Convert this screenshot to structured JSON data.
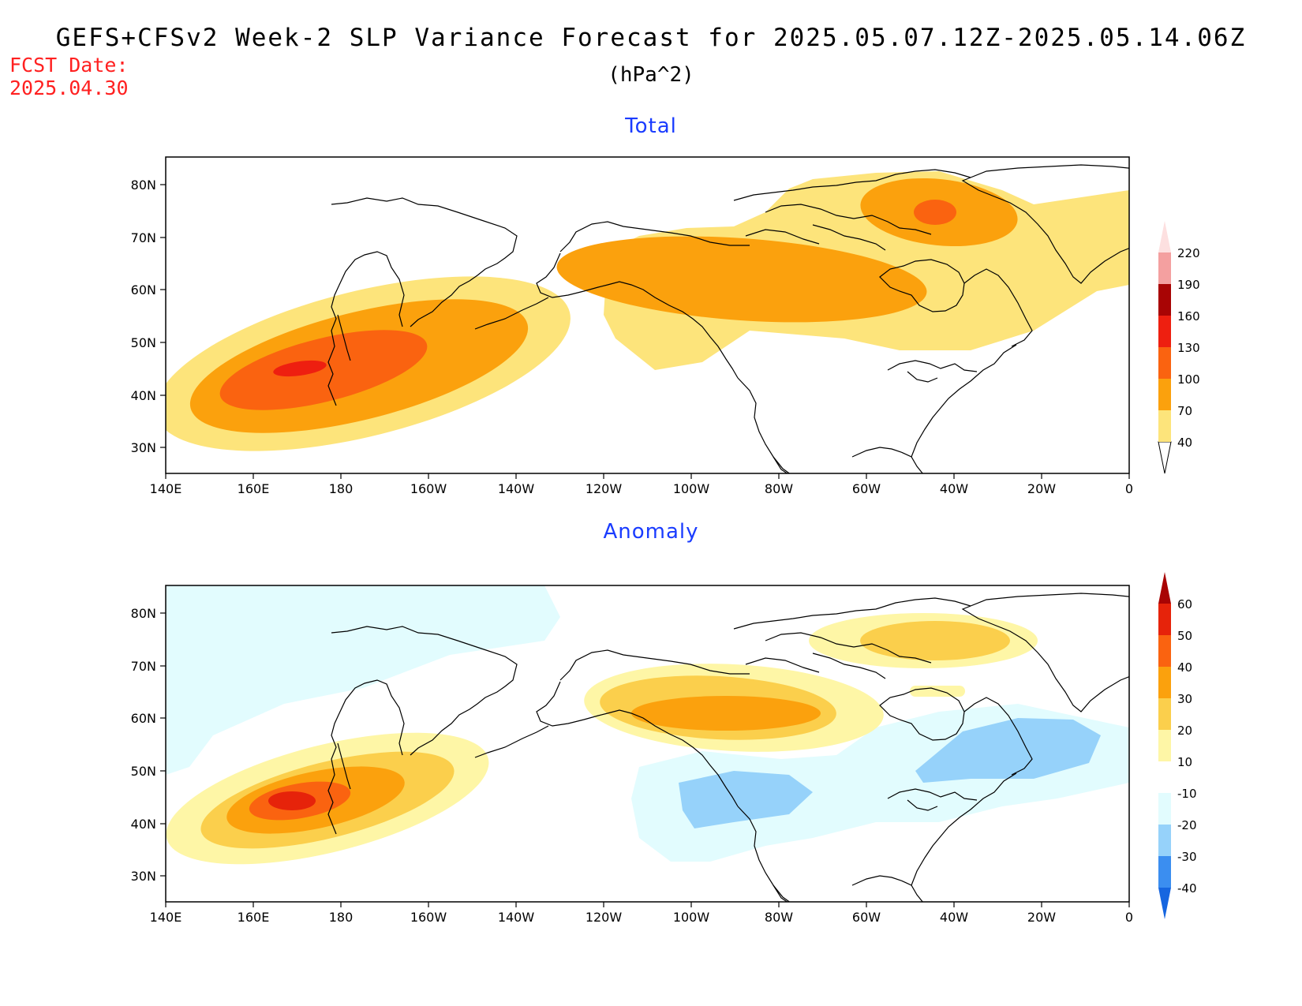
{
  "title": "GEFS+CFSv2 Week-2 SLP Variance Forecast for 2025.05.07.12Z-2025.05.14.06Z",
  "units": "(hPa^2)",
  "fcst_label": "FCST Date:",
  "fcst_date": "2025.04.30",
  "lon_ticks": [
    "140E",
    "160E",
    "180",
    "160W",
    "140W",
    "120W",
    "100W",
    "80W",
    "60W",
    "40W",
    "20W",
    "0"
  ],
  "lat_ticks": [
    "80N",
    "70N",
    "60N",
    "50N",
    "40N",
    "30N"
  ],
  "panels": [
    {
      "title": "Total",
      "legend": {
        "labels": [
          "40",
          "70",
          "100",
          "130",
          "160",
          "190",
          "220"
        ],
        "colors": [
          "#fde47b",
          "#fba10d",
          "#fa6310",
          "#ee1f10",
          "#a80404",
          "#f4a0a0",
          "#fde0e0"
        ]
      }
    },
    {
      "title": "Anomaly",
      "legend": {
        "labels": [
          "-40",
          "-30",
          "-20",
          "-10",
          "10",
          "20",
          "30",
          "40",
          "50",
          "60"
        ],
        "colors": [
          "#1666e0",
          "#3b8ef0",
          "#96d2fa",
          "#e2fcfe",
          "#ffffff",
          "#fef6a6",
          "#fbcf4c",
          "#fba10d",
          "#fa6310",
          "#e6230a",
          "#a80404"
        ]
      }
    }
  ]
}
